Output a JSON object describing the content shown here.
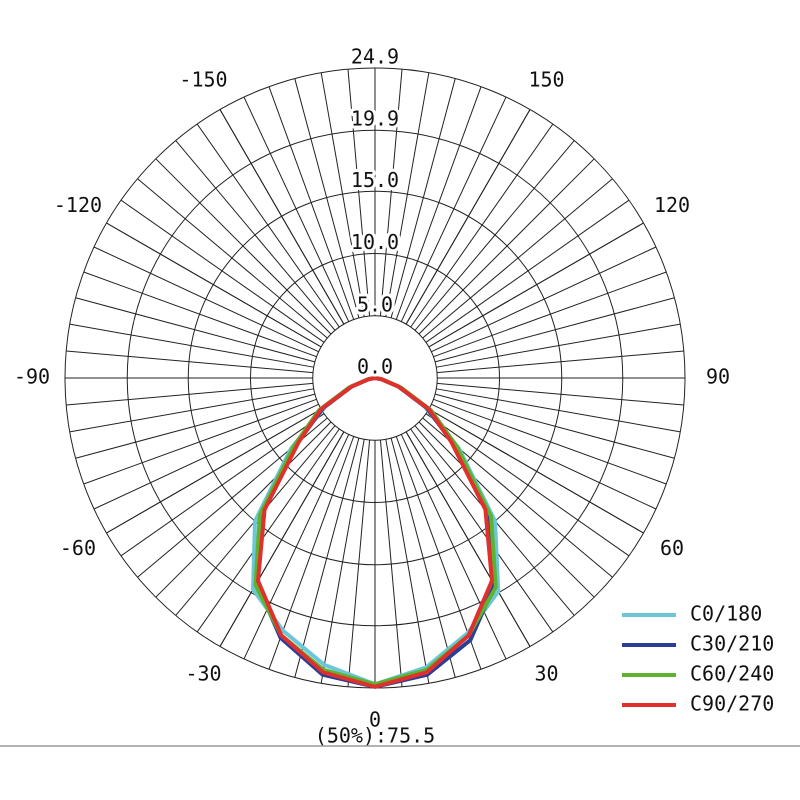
{
  "chart_data": {
    "type": "polar",
    "annotation": "(50%):75.5",
    "rlim": [
      0,
      24.9
    ],
    "rticks": [
      {
        "value": 0,
        "label": "0.0"
      },
      {
        "value": 5,
        "label": "5.0"
      },
      {
        "value": 10,
        "label": "10.0"
      },
      {
        "value": 15,
        "label": "15.0"
      },
      19.9,
      24.9
    ],
    "thetaticks": [
      -150,
      -120,
      -90,
      -60,
      -30,
      0,
      30,
      60,
      90,
      120,
      150
    ],
    "x": [
      -90,
      -80,
      -70,
      -60,
      -50,
      -40,
      -30,
      -20,
      -10,
      0,
      10,
      20,
      30,
      40,
      50,
      60,
      70,
      80,
      90
    ],
    "series": [
      {
        "name": "C0/180",
        "color": "#6cc6d8",
        "values": [
          0,
          0.5,
          2.0,
          4.6,
          8.8,
          15.0,
          19.6,
          21.6,
          23.4,
          24.6,
          23.6,
          21.8,
          19.8,
          15.0,
          8.8,
          4.6,
          2.0,
          0.5,
          0
        ]
      },
      {
        "name": "C30/210",
        "color": "#2b3d96",
        "values": [
          0,
          0.5,
          2.0,
          4.8,
          8.2,
          14.0,
          19.0,
          22.2,
          24.2,
          24.8,
          24.2,
          22.4,
          19.2,
          14.0,
          8.2,
          4.8,
          2.0,
          0.5,
          0
        ]
      },
      {
        "name": "C60/240",
        "color": "#5db330",
        "values": [
          0,
          0.6,
          2.2,
          5.2,
          8.5,
          14.4,
          19.2,
          22.0,
          23.8,
          24.6,
          23.8,
          22.0,
          19.4,
          14.5,
          8.6,
          5.2,
          2.2,
          0.6,
          0
        ]
      },
      {
        "name": "C90/270",
        "color": "#e0302c",
        "values": [
          0,
          0.5,
          2.0,
          5.0,
          8.0,
          13.8,
          18.8,
          22.0,
          24.0,
          24.8,
          24.0,
          22.0,
          18.8,
          13.8,
          8.0,
          5.0,
          2.0,
          0.5,
          0
        ]
      }
    ]
  }
}
